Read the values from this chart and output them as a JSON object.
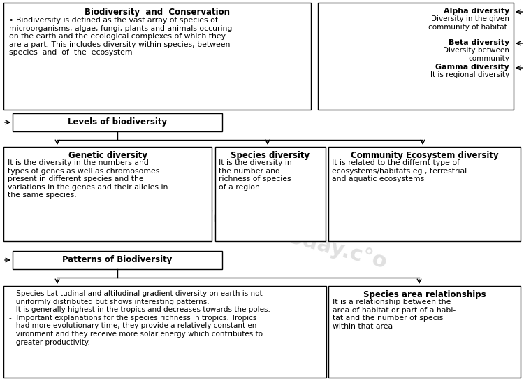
{
  "bg_color": "#ffffff",
  "top_left_title": "Biodiversity  and  Conservation",
  "top_left_body": "• Biodiversity is defined as the vast array of species of\nmicroorganisms, algae, fungi, plants and animals occuring\non the earth and the ecological complexes of which they\nare a part. This includes diversity within species, between\nspecies  and  of  the  ecosystem",
  "top_right_alpha_title": "Alpha diversity",
  "top_right_alpha_body": "Diversity in the given\ncommunity of habitat.",
  "top_right_beta_title": "Beta diversity",
  "top_right_beta_body": "Diversity between\ncommunity",
  "top_right_gamma_title": "Gamma diversity",
  "top_right_gamma_body": "It is regional diversity",
  "levels_title": "Levels of biodiversity",
  "genetic_title": "Genetic diversity",
  "genetic_body": "It is the diversity in the numbers and\ntypes of genes as well as chromosomes\npresent in different species and the\nvariations in the genes and their alleles in\nthe same species.",
  "species_title": "Species diversity",
  "species_body": "It is the diversity in\nthe number and\nrichness of species\nof a region",
  "community_title": "Community Ecosystem diversity",
  "community_body": "It is related to the differnt type of\necosystems/habitats eg., terrestrial\nand aquatic ecosystems",
  "patterns_title": "Patterns of Biodiversity",
  "patterns_body": "-  Species Latitudinal and altiludinal gradient diversity on earth is not\n   uniformly distributed but shows interesting patterns.\n   It is generally highest in the tropics and decreases towards the poles.\n-  Important explanations for the species richness in tropics: Tropics\n   had more evolutionary time; they provide a relatively constant en-\n   vironment and they receive more solar energy which contributes to\n   greater productivity.",
  "species_area_title": "Species area relationships",
  "species_area_body": "It is a relationship between the\narea of habitat or part of a habi-\ntat and the number of specis\nwithin that area"
}
